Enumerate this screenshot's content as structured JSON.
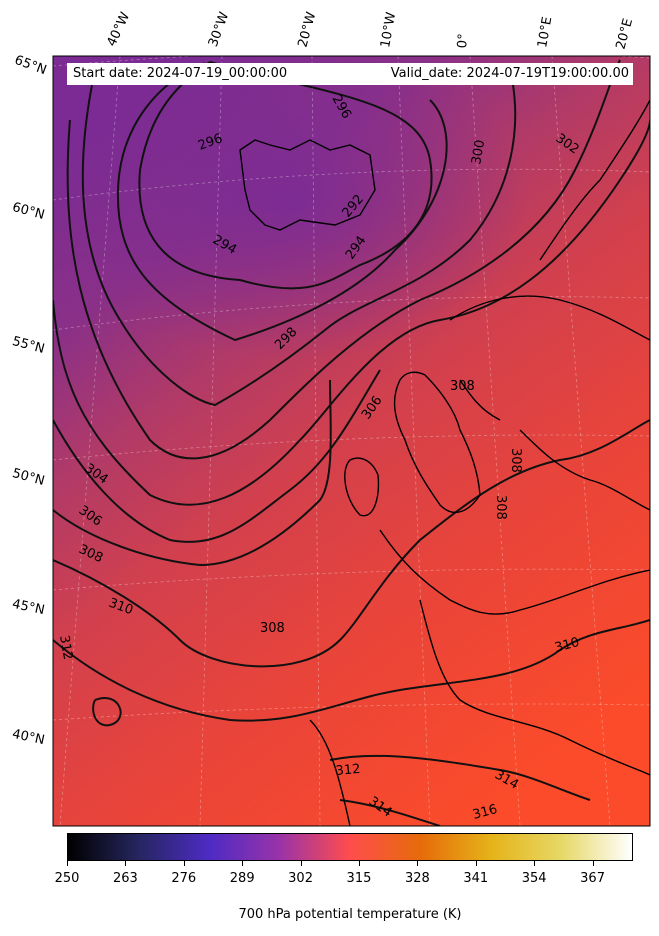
{
  "header": {
    "start_date": "Start date: 2024-07-19_00:00:00",
    "valid_date": "Valid_date: 2024-07-19T19:00:00.00"
  },
  "longitude_labels": [
    "40°W",
    "30°W",
    "20°W",
    "10°W",
    "0°",
    "10°E",
    "20°E"
  ],
  "latitude_labels": [
    "65°N",
    "60°N",
    "55°N",
    "50°N",
    "45°N",
    "40°N"
  ],
  "contour_labels": [
    "296",
    "296",
    "300",
    "302",
    "292",
    "294",
    "294",
    "298",
    "306",
    "308",
    "308",
    "304",
    "306",
    "308",
    "310",
    "312",
    "308",
    "310",
    "312",
    "314",
    "314",
    "316",
    "308"
  ],
  "colorbar": {
    "ticks": [
      "250",
      "263",
      "276",
      "289",
      "302",
      "315",
      "328",
      "341",
      "354",
      "367"
    ],
    "range": [
      250,
      376
    ],
    "colormap": "CMRmap-like",
    "title": "700 hPa potential temperature (K)"
  },
  "colors": {
    "cold_field": "#7e2d8f",
    "warm_field": "#f64a2d",
    "contour": "#000000",
    "coastline": "#000000"
  }
}
